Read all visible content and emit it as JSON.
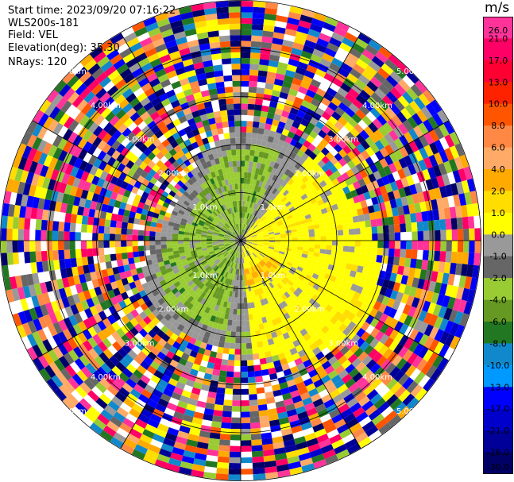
{
  "header": {
    "start_time": "Start time: 2023/09/20 07:16:22",
    "instrument": "WLS200s-181",
    "field": "Field: VEL",
    "elevation": "Elevation(deg): 35.30",
    "nrays": "NRays: 120"
  },
  "colorbar": {
    "unit": "m/s",
    "ticks": [
      "26.0",
      "21.0",
      "17.0",
      "13.0",
      "10.0",
      "8.0",
      "6.0",
      "4.0",
      "2.0",
      "1.0",
      "0.0",
      "-1.0",
      "-2.0",
      "-4.0",
      "-6.0",
      "-8.0",
      "-10.0",
      "-13.0",
      "-17.0",
      "-21.0",
      "-26.0",
      "-30.0"
    ],
    "colors": [
      "#ff3399",
      "#ff0066",
      "#ff0033",
      "#ff2200",
      "#ff5500",
      "#ff8844",
      "#ffaa66",
      "#ffaa00",
      "#ffdd00",
      "#ffff00",
      "#999999",
      "#666666",
      "#99cc33",
      "#669922",
      "#227722",
      "#1188cc",
      "#0099ff",
      "#0000ff",
      "#0000cc",
      "#000099",
      "#000066"
    ]
  },
  "ring_labels": [
    "1.0km",
    "2.00km",
    "3.00km",
    "4.00km",
    "5.00km"
  ],
  "chart_data": {
    "type": "heatmap",
    "title": "",
    "field": "VEL",
    "elevation_deg": 35.3,
    "n_rays": 120,
    "range_rings_km": [
      1.0,
      2.0,
      3.0,
      4.0,
      5.0
    ],
    "value_range": [
      -30.0,
      26.0
    ],
    "unit": "m/s",
    "description_values": {
      "near_field_north_west": "-2.0 to -6.0",
      "near_field_south_east": "1.0 to 4.0",
      "far_field": "noise across full scale"
    }
  }
}
